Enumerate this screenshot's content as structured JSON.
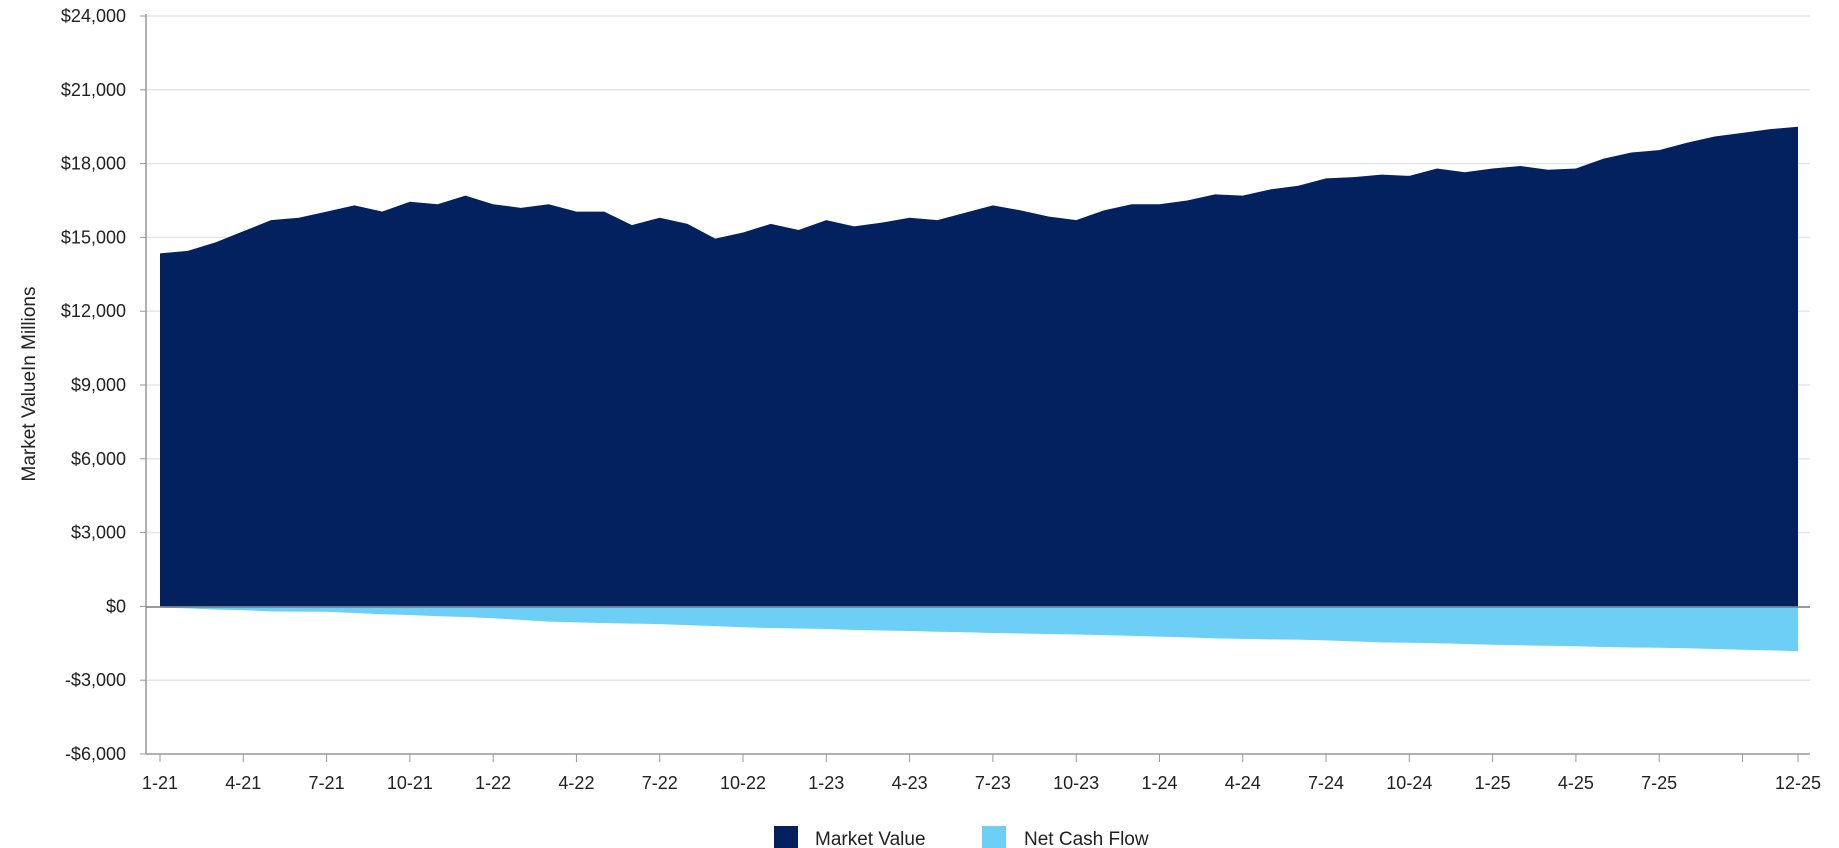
{
  "chart_data": {
    "type": "area",
    "ylabel": "Market ValueIn Millions",
    "ylim": [
      -6000,
      24000
    ],
    "y_ticks": [
      -6000,
      -3000,
      0,
      3000,
      6000,
      9000,
      12000,
      15000,
      18000,
      21000,
      24000
    ],
    "y_tick_labels": [
      "-$6,000",
      "-$3,000",
      "$0",
      "$3,000",
      "$6,000",
      "$9,000",
      "$12,000",
      "$15,000",
      "$18,000",
      "$21,000",
      "$24,000"
    ],
    "x_tick_labels": [
      {
        "i": 0,
        "label": "1-21"
      },
      {
        "i": 3,
        "label": "4-21"
      },
      {
        "i": 6,
        "label": "7-21"
      },
      {
        "i": 9,
        "label": "10-21"
      },
      {
        "i": 12,
        "label": "1-22"
      },
      {
        "i": 15,
        "label": "4-22"
      },
      {
        "i": 18,
        "label": "7-22"
      },
      {
        "i": 21,
        "label": "10-22"
      },
      {
        "i": 24,
        "label": "1-23"
      },
      {
        "i": 27,
        "label": "4-23"
      },
      {
        "i": 30,
        "label": "7-23"
      },
      {
        "i": 33,
        "label": "10-23"
      },
      {
        "i": 36,
        "label": "1-24"
      },
      {
        "i": 39,
        "label": "4-24"
      },
      {
        "i": 42,
        "label": "7-24"
      },
      {
        "i": 45,
        "label": "10-24"
      },
      {
        "i": 48,
        "label": "1-25"
      },
      {
        "i": 51,
        "label": "4-25"
      },
      {
        "i": 54,
        "label": "7-25"
      },
      {
        "i": 57,
        "label": ""
      },
      {
        "i": 59,
        "label": "12-25"
      }
    ],
    "grid": true,
    "legend_position": "bottom-center",
    "series": [
      {
        "name": "Market Value",
        "color": "#03215e",
        "values": [
          14350,
          14450,
          14800,
          15250,
          15700,
          15800,
          16050,
          16300,
          16050,
          16450,
          16350,
          16700,
          16350,
          16200,
          16350,
          16050,
          16050,
          15500,
          15800,
          15550,
          14950,
          15200,
          15550,
          15300,
          15700,
          15450,
          15600,
          15800,
          15700,
          16000,
          16300,
          16100,
          15850,
          15700,
          16100,
          16350,
          16350,
          16500,
          16750,
          16700,
          16950,
          17100,
          17400,
          17450,
          17550,
          17500,
          17800,
          17650,
          17800,
          17900,
          17750,
          17800,
          18200,
          18450,
          18550,
          18850,
          19100,
          19250,
          19400,
          19500
        ]
      },
      {
        "name": "Net Cash Flow",
        "color": "#6dcff6",
        "values": [
          -50,
          -80,
          -130,
          -150,
          -200,
          -210,
          -220,
          -270,
          -320,
          -350,
          -400,
          -430,
          -480,
          -550,
          -620,
          -650,
          -680,
          -700,
          -720,
          -760,
          -800,
          -850,
          -880,
          -900,
          -920,
          -960,
          -980,
          -1000,
          -1030,
          -1050,
          -1080,
          -1100,
          -1120,
          -1140,
          -1170,
          -1200,
          -1230,
          -1260,
          -1300,
          -1320,
          -1340,
          -1350,
          -1380,
          -1420,
          -1460,
          -1480,
          -1500,
          -1530,
          -1560,
          -1580,
          -1600,
          -1620,
          -1650,
          -1670,
          -1680,
          -1700,
          -1730,
          -1760,
          -1790,
          -1820
        ]
      }
    ]
  }
}
